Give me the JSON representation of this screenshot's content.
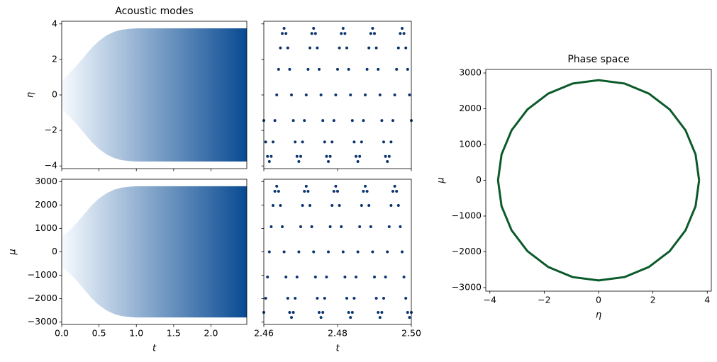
{
  "chart_data": [
    {
      "type": "area",
      "title": "Acoustic modes",
      "ylabel": "η",
      "x": [
        0,
        0.1,
        0.2,
        0.3,
        0.4,
        0.5,
        0.6,
        0.7,
        0.8,
        0.9,
        1.0,
        1.2,
        1.6,
        2.0,
        2.48
      ],
      "series": [
        {
          "values": [
            0.8,
            1.2,
            1.65,
            2.15,
            2.65,
            3.05,
            3.35,
            3.55,
            3.67,
            3.72,
            3.75,
            3.75,
            3.75,
            3.75,
            3.75
          ]
        },
        {
          "values": [
            -0.8,
            -1.2,
            -1.65,
            -2.15,
            -2.65,
            -3.05,
            -3.35,
            -3.55,
            -3.67,
            -3.72,
            -3.75,
            -3.75,
            -3.75,
            -3.75,
            -3.75
          ]
        }
      ],
      "colormap": [
        "#f7fbff",
        "#084a92"
      ],
      "xlim": [
        0,
        2.48
      ],
      "ylim": [
        -4.15,
        4.15
      ],
      "xticks": [
        {
          "value": 0,
          "label": "0.0"
        },
        0.5,
        {
          "value": 1,
          "label": "1.0"
        },
        1.5,
        {
          "value": 2,
          "label": "2.0"
        }
      ],
      "yticks": [
        {
          "value": -4,
          "label": "−4"
        },
        {
          "value": -2,
          "label": "−2"
        },
        0,
        2,
        4
      ]
    },
    {
      "type": "scatter",
      "color": "#0b3470",
      "x": [
        2.46,
        2.4605,
        2.461,
        2.4615,
        2.462,
        2.4625,
        2.463,
        2.4635,
        2.464,
        2.4645,
        2.465,
        2.4655,
        2.466,
        2.4665,
        2.467,
        2.4675,
        2.468,
        2.4685,
        2.469,
        2.4695,
        2.47,
        2.4705,
        2.471,
        2.4715,
        2.472,
        2.4725,
        2.473,
        2.4735,
        2.474,
        2.4745,
        2.475,
        2.4755,
        2.476,
        2.4765,
        2.477,
        2.4775,
        2.478,
        2.4785,
        2.479,
        2.4795,
        2.48,
        2.4805,
        2.481,
        2.4815,
        2.482,
        2.4825,
        2.483,
        2.4835,
        2.484,
        2.4845,
        2.485,
        2.4855,
        2.486,
        2.4865,
        2.487,
        2.4875,
        2.488,
        2.4885,
        2.489,
        2.4895,
        2.49,
        2.4905,
        2.491,
        2.4915,
        2.492,
        2.4925,
        2.493,
        2.4935,
        2.494,
        2.4945,
        2.495,
        2.4955,
        2.496,
        2.4965,
        2.497,
        2.4975,
        2.498,
        2.4985,
        2.499,
        2.4995,
        2.5
      ],
      "values": [
        -1.44,
        -2.65,
        -3.46,
        -3.75,
        -3.46,
        -2.65,
        -1.44,
        0,
        1.44,
        2.65,
        3.46,
        3.75,
        3.46,
        2.65,
        1.44,
        0,
        -1.44,
        -2.65,
        -3.46,
        -3.75,
        -3.46,
        -2.65,
        -1.44,
        0,
        1.44,
        2.65,
        3.46,
        3.75,
        3.46,
        2.65,
        1.44,
        0,
        -1.44,
        -2.65,
        -3.46,
        -3.75,
        -3.46,
        -2.65,
        -1.44,
        0,
        1.44,
        2.65,
        3.46,
        3.75,
        3.46,
        2.65,
        1.44,
        0,
        -1.44,
        -2.65,
        -3.46,
        -3.75,
        -3.46,
        -2.65,
        -1.44,
        0,
        1.44,
        2.65,
        3.46,
        3.75,
        3.46,
        2.65,
        1.44,
        0,
        -1.44,
        -2.65,
        -3.46,
        -3.75,
        -3.46,
        -2.65,
        -1.44,
        0,
        1.44,
        2.65,
        3.46,
        3.75,
        3.46,
        2.65,
        1.44,
        0,
        -1.44
      ],
      "xlim": [
        2.46,
        2.5
      ],
      "ylim": [
        -4.15,
        4.15
      ],
      "xticks": [
        2.46,
        2.48,
        {
          "value": 2.5,
          "label": "2.50"
        }
      ],
      "yticks": [
        {
          "value": -4,
          "label": "−4"
        },
        {
          "value": -2,
          "label": "−2"
        },
        0,
        2,
        4
      ]
    },
    {
      "type": "area",
      "ylabel": "μ",
      "xlabel": "t",
      "x": [
        0,
        0.1,
        0.2,
        0.3,
        0.4,
        0.5,
        0.6,
        0.7,
        0.8,
        0.9,
        1.0,
        1.2,
        1.6,
        2.0,
        2.48
      ],
      "series": [
        {
          "values": [
            650,
            900,
            1230,
            1600,
            1980,
            2280,
            2500,
            2650,
            2740,
            2780,
            2800,
            2800,
            2800,
            2800,
            2800
          ]
        },
        {
          "values": [
            -650,
            -900,
            -1230,
            -1600,
            -1980,
            -2280,
            -2500,
            -2650,
            -2740,
            -2780,
            -2800,
            -2800,
            -2800,
            -2800,
            -2800
          ]
        }
      ],
      "colormap": [
        "#f7fbff",
        "#084a92"
      ],
      "xlim": [
        0,
        2.48
      ],
      "ylim": [
        -3100,
        3100
      ],
      "xticks": [
        {
          "value": 0,
          "label": "0.0"
        },
        0.5,
        {
          "value": 1,
          "label": "1.0"
        },
        1.5,
        {
          "value": 2,
          "label": "2.0"
        }
      ],
      "yticks": [
        {
          "value": -3000,
          "label": "−3000"
        },
        {
          "value": -2000,
          "label": "−2000"
        },
        {
          "value": -1000,
          "label": "−1000"
        },
        0,
        1000,
        2000,
        3000
      ]
    },
    {
      "type": "scatter",
      "color": "#0b3470",
      "xlabel": "t",
      "x": [
        2.46,
        2.4605,
        2.461,
        2.4615,
        2.462,
        2.4625,
        2.463,
        2.4635,
        2.464,
        2.4645,
        2.465,
        2.4655,
        2.466,
        2.4665,
        2.467,
        2.4675,
        2.468,
        2.4685,
        2.469,
        2.4695,
        2.47,
        2.4705,
        2.471,
        2.4715,
        2.472,
        2.4725,
        2.473,
        2.4735,
        2.474,
        2.4745,
        2.475,
        2.4755,
        2.476,
        2.4765,
        2.477,
        2.4775,
        2.478,
        2.4785,
        2.479,
        2.4795,
        2.48,
        2.4805,
        2.481,
        2.4815,
        2.482,
        2.4825,
        2.483,
        2.4835,
        2.484,
        2.4845,
        2.485,
        2.4855,
        2.486,
        2.4865,
        2.487,
        2.4875,
        2.488,
        2.4885,
        2.489,
        2.4895,
        2.49,
        2.4905,
        2.491,
        2.4915,
        2.492,
        2.4925,
        2.493,
        2.4935,
        2.494,
        2.4945,
        2.495,
        2.4955,
        2.496,
        2.4965,
        2.497,
        2.4975,
        2.498,
        2.4985,
        2.499,
        2.4995,
        2.5
      ],
      "values": [
        -2587,
        -1980,
        -1072,
        0,
        1072,
        1980,
        2587,
        2800,
        2587,
        1980,
        1072,
        0,
        -1072,
        -1980,
        -2587,
        -2800,
        -2587,
        -1980,
        -1072,
        0,
        1072,
        1980,
        2587,
        2800,
        2587,
        1980,
        1072,
        0,
        -1072,
        -1980,
        -2587,
        -2800,
        -2587,
        -1980,
        -1072,
        0,
        1072,
        1980,
        2587,
        2800,
        2587,
        1980,
        1072,
        0,
        -1072,
        -1980,
        -2587,
        -2800,
        -2587,
        -1980,
        -1072,
        0,
        1072,
        1980,
        2587,
        2800,
        2587,
        1980,
        1072,
        0,
        -1072,
        -1980,
        -2587,
        -2800,
        -2587,
        -1980,
        -1072,
        0,
        1072,
        1980,
        2587,
        2800,
        2587,
        1980,
        1072,
        0,
        -1072,
        -1980,
        -2587,
        -2800,
        -2587
      ],
      "xlim": [
        2.46,
        2.5
      ],
      "ylim": [
        -3100,
        3100
      ],
      "xticks": [
        2.46,
        2.48,
        {
          "value": 2.5,
          "label": "2.50"
        }
      ],
      "yticks": [
        {
          "value": -3000,
          "label": "−3000"
        },
        {
          "value": -2000,
          "label": "−2000"
        },
        {
          "value": -1000,
          "label": "−1000"
        },
        0,
        1000,
        2000,
        3000
      ]
    },
    {
      "type": "line",
      "title": "Phase space",
      "xlabel": "η",
      "ylabel": "μ",
      "color": "#0b5a2a",
      "x": [
        3.7,
        3.57,
        3.2,
        2.62,
        1.85,
        0.96,
        0,
        -0.96,
        -1.85,
        -2.62,
        -3.2,
        -3.57,
        -3.7,
        -3.57,
        -3.2,
        -2.62,
        -1.85,
        -0.96,
        0,
        0.96,
        1.85,
        2.62,
        3.2,
        3.57,
        3.7
      ],
      "values": [
        0,
        725,
        1400,
        1980,
        2425,
        2705,
        2800,
        2705,
        2425,
        1980,
        1400,
        725,
        0,
        -725,
        -1400,
        -1980,
        -2425,
        -2705,
        -2800,
        -2705,
        -2425,
        -1980,
        -1400,
        -725,
        0
      ],
      "xlim": [
        -4.15,
        4.15
      ],
      "ylim": [
        -3100,
        3100
      ],
      "xticks": [
        {
          "value": -4,
          "label": "−4"
        },
        {
          "value": -2,
          "label": "−2"
        },
        0,
        2,
        4
      ],
      "yticks": [
        {
          "value": -3000,
          "label": "−3000"
        },
        {
          "value": -2000,
          "label": "−2000"
        },
        {
          "value": -1000,
          "label": "−1000"
        },
        0,
        1000,
        2000,
        3000
      ]
    }
  ]
}
